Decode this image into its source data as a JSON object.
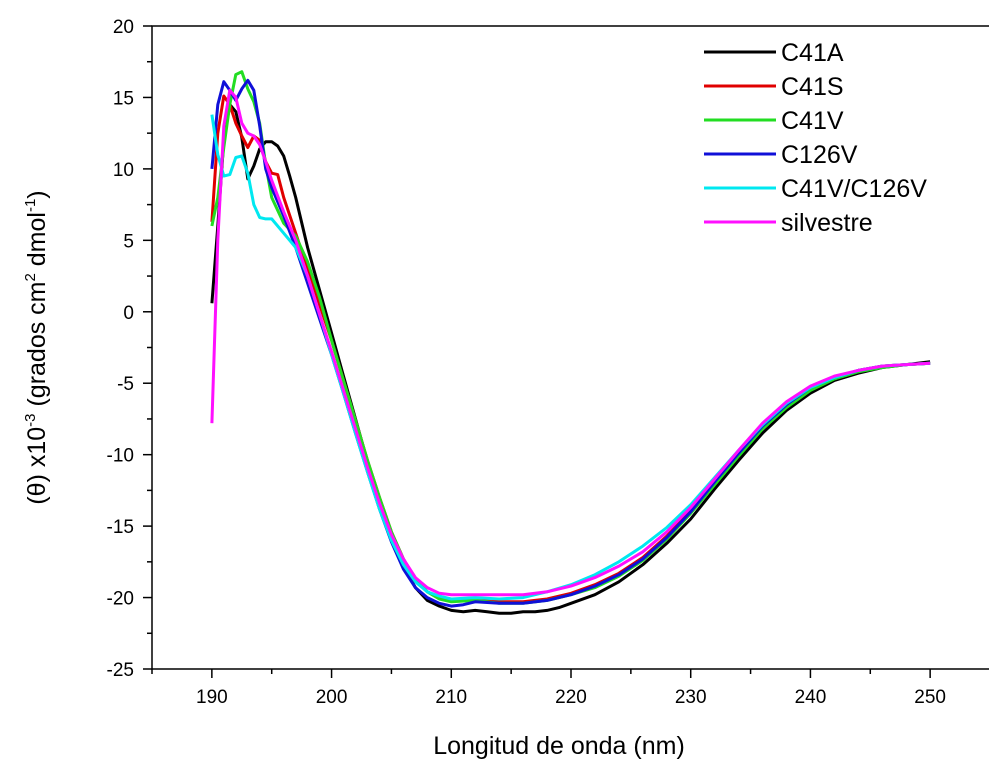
{
  "chart_data": {
    "type": "line",
    "xlabel": "Longitud de onda (nm)",
    "ylabel": {
      "prefix": "(θ) x10",
      "exp1": "-3",
      "mid": " (grados cm",
      "exp2": "2",
      "mid2": " dmol",
      "exp3": "-1",
      "suffix": ")"
    },
    "xlim": [
      185,
      255
    ],
    "ylim": [
      -25,
      20
    ],
    "xticks": [
      190,
      200,
      210,
      220,
      230,
      240,
      250
    ],
    "yticks": [
      -25,
      -20,
      -15,
      -10,
      -5,
      0,
      5,
      10,
      15,
      20
    ],
    "legend_position": "top-right",
    "grid": false,
    "series": [
      {
        "name": "C41A",
        "color": "#000000",
        "points": [
          [
            190,
            0.6
          ],
          [
            190.5,
            6
          ],
          [
            191,
            12
          ],
          [
            191.5,
            14.5
          ],
          [
            192,
            14
          ],
          [
            192.5,
            12.2
          ],
          [
            193,
            9.3
          ],
          [
            193.5,
            10.2
          ],
          [
            194,
            11.4
          ],
          [
            194.5,
            11.9
          ],
          [
            195,
            11.9
          ],
          [
            195.5,
            11.6
          ],
          [
            196,
            10.9
          ],
          [
            196.5,
            9.5
          ],
          [
            197,
            8
          ],
          [
            198,
            4.5
          ],
          [
            199,
            1.5
          ],
          [
            200,
            -1.5
          ],
          [
            201,
            -4.5
          ],
          [
            202,
            -7.5
          ],
          [
            203,
            -10.5
          ],
          [
            204,
            -13.3
          ],
          [
            205,
            -15.8
          ],
          [
            206,
            -17.8
          ],
          [
            207,
            -19.3
          ],
          [
            208,
            -20.2
          ],
          [
            209,
            -20.6
          ],
          [
            210,
            -20.9
          ],
          [
            211,
            -21
          ],
          [
            212,
            -20.9
          ],
          [
            213,
            -21
          ],
          [
            214,
            -21.1
          ],
          [
            215,
            -21.1
          ],
          [
            216,
            -21
          ],
          [
            217,
            -21
          ],
          [
            218,
            -20.9
          ],
          [
            219,
            -20.7
          ],
          [
            220,
            -20.4
          ],
          [
            222,
            -19.8
          ],
          [
            224,
            -18.9
          ],
          [
            226,
            -17.7
          ],
          [
            228,
            -16.2
          ],
          [
            230,
            -14.5
          ],
          [
            232,
            -12.4
          ],
          [
            234,
            -10.4
          ],
          [
            236,
            -8.5
          ],
          [
            238,
            -6.9
          ],
          [
            240,
            -5.7
          ],
          [
            242,
            -4.8
          ],
          [
            244,
            -4.3
          ],
          [
            246,
            -3.9
          ],
          [
            248,
            -3.7
          ],
          [
            250,
            -3.5
          ]
        ]
      },
      {
        "name": "C41S",
        "color": "#e00000",
        "points": [
          [
            190,
            6.3
          ],
          [
            190.5,
            12.5
          ],
          [
            191,
            15.1
          ],
          [
            191.5,
            14.5
          ],
          [
            192,
            13.2
          ],
          [
            192.5,
            12.3
          ],
          [
            193,
            11.5
          ],
          [
            193.5,
            12.3
          ],
          [
            194,
            12
          ],
          [
            194.5,
            10.5
          ],
          [
            195,
            9.7
          ],
          [
            195.5,
            9.6
          ],
          [
            196,
            8
          ],
          [
            197,
            5.5
          ],
          [
            198,
            3
          ],
          [
            199,
            0.5
          ],
          [
            200,
            -2
          ],
          [
            201,
            -4.8
          ],
          [
            202,
            -7.6
          ],
          [
            203,
            -10.4
          ],
          [
            204,
            -13
          ],
          [
            205,
            -15.4
          ],
          [
            206,
            -17.3
          ],
          [
            207,
            -18.7
          ],
          [
            208,
            -19.6
          ],
          [
            209,
            -20
          ],
          [
            210,
            -20.2
          ],
          [
            212,
            -20.1
          ],
          [
            214,
            -20.3
          ],
          [
            216,
            -20.3
          ],
          [
            218,
            -20.1
          ],
          [
            220,
            -19.7
          ],
          [
            222,
            -19.1
          ],
          [
            224,
            -18.3
          ],
          [
            226,
            -17.2
          ],
          [
            228,
            -15.7
          ],
          [
            230,
            -13.9
          ],
          [
            232,
            -11.9
          ],
          [
            234,
            -9.9
          ],
          [
            236,
            -8
          ],
          [
            238,
            -6.5
          ],
          [
            240,
            -5.3
          ],
          [
            242,
            -4.6
          ],
          [
            244,
            -4.1
          ],
          [
            246,
            -3.8
          ],
          [
            248,
            -3.7
          ],
          [
            250,
            -3.6
          ]
        ]
      },
      {
        "name": "C41V",
        "color": "#22dd22",
        "points": [
          [
            190,
            6
          ],
          [
            190.5,
            8
          ],
          [
            191,
            11.5
          ],
          [
            191.5,
            14.5
          ],
          [
            192,
            16.6
          ],
          [
            192.5,
            16.8
          ],
          [
            193,
            15.6
          ],
          [
            193.5,
            14.7
          ],
          [
            194,
            13.2
          ],
          [
            194.5,
            10.3
          ],
          [
            195,
            8
          ],
          [
            196,
            6.2
          ],
          [
            197,
            5.3
          ],
          [
            198,
            3.5
          ],
          [
            199,
            1
          ],
          [
            200,
            -2
          ],
          [
            201,
            -4.8
          ],
          [
            202,
            -7.6
          ],
          [
            203,
            -10.4
          ],
          [
            204,
            -13
          ],
          [
            205,
            -15.4
          ],
          [
            206,
            -17.3
          ],
          [
            207,
            -18.7
          ],
          [
            208,
            -19.6
          ],
          [
            209,
            -20.1
          ],
          [
            210,
            -20.3
          ],
          [
            212,
            -20.2
          ],
          [
            214,
            -20.4
          ],
          [
            216,
            -20.4
          ],
          [
            218,
            -20.2
          ],
          [
            220,
            -19.8
          ],
          [
            222,
            -19.3
          ],
          [
            224,
            -18.5
          ],
          [
            226,
            -17.4
          ],
          [
            228,
            -15.9
          ],
          [
            230,
            -14.1
          ],
          [
            232,
            -12.1
          ],
          [
            234,
            -10.1
          ],
          [
            236,
            -8.2
          ],
          [
            238,
            -6.7
          ],
          [
            240,
            -5.5
          ],
          [
            242,
            -4.7
          ],
          [
            244,
            -4.2
          ],
          [
            246,
            -3.9
          ],
          [
            248,
            -3.7
          ],
          [
            250,
            -3.6
          ]
        ]
      },
      {
        "name": "C126V",
        "color": "#1010d8",
        "points": [
          [
            190,
            10
          ],
          [
            190.5,
            14.5
          ],
          [
            191,
            16.1
          ],
          [
            191.5,
            15.5
          ],
          [
            192,
            14.8
          ],
          [
            192.5,
            15.6
          ],
          [
            193,
            16.2
          ],
          [
            193.5,
            15.5
          ],
          [
            194,
            13
          ],
          [
            194.5,
            10
          ],
          [
            195,
            8.7
          ],
          [
            196,
            6.7
          ],
          [
            197,
            4.5
          ],
          [
            198,
            2
          ],
          [
            199,
            -0.5
          ],
          [
            200,
            -3
          ],
          [
            201,
            -5.7
          ],
          [
            202,
            -8.5
          ],
          [
            203,
            -11.2
          ],
          [
            204,
            -13.8
          ],
          [
            205,
            -16.1
          ],
          [
            206,
            -18
          ],
          [
            207,
            -19.3
          ],
          [
            208,
            -20
          ],
          [
            209,
            -20.4
          ],
          [
            210,
            -20.6
          ],
          [
            211,
            -20.5
          ],
          [
            212,
            -20.3
          ],
          [
            214,
            -20.4
          ],
          [
            216,
            -20.4
          ],
          [
            218,
            -20.2
          ],
          [
            220,
            -19.8
          ],
          [
            222,
            -19.2
          ],
          [
            224,
            -18.4
          ],
          [
            226,
            -17.3
          ],
          [
            228,
            -15.8
          ],
          [
            230,
            -14
          ],
          [
            232,
            -11.9
          ],
          [
            234,
            -9.9
          ],
          [
            236,
            -8
          ],
          [
            238,
            -6.5
          ],
          [
            240,
            -5.3
          ],
          [
            242,
            -4.6
          ],
          [
            244,
            -4.1
          ],
          [
            246,
            -3.8
          ],
          [
            248,
            -3.7
          ],
          [
            250,
            -3.6
          ]
        ]
      },
      {
        "name": "C41V/C126V",
        "color": "#00e8f0",
        "points": [
          [
            190,
            13.8
          ],
          [
            190.5,
            11
          ],
          [
            191,
            9.5
          ],
          [
            191.5,
            9.6
          ],
          [
            192,
            10.8
          ],
          [
            192.5,
            10.9
          ],
          [
            193,
            9.7
          ],
          [
            193.5,
            7.5
          ],
          [
            194,
            6.6
          ],
          [
            194.5,
            6.5
          ],
          [
            195,
            6.5
          ],
          [
            196,
            5.5
          ],
          [
            197,
            4.5
          ],
          [
            198,
            2.5
          ],
          [
            199,
            -0.2
          ],
          [
            200,
            -3
          ],
          [
            201,
            -5.7
          ],
          [
            202,
            -8.5
          ],
          [
            203,
            -11.2
          ],
          [
            204,
            -13.8
          ],
          [
            205,
            -16
          ],
          [
            206,
            -17.7
          ],
          [
            207,
            -18.9
          ],
          [
            208,
            -19.6
          ],
          [
            209,
            -19.9
          ],
          [
            210,
            -20.1
          ],
          [
            212,
            -20
          ],
          [
            214,
            -20.1
          ],
          [
            216,
            -20
          ],
          [
            218,
            -19.6
          ],
          [
            220,
            -19.1
          ],
          [
            222,
            -18.4
          ],
          [
            224,
            -17.5
          ],
          [
            226,
            -16.4
          ],
          [
            228,
            -15.1
          ],
          [
            230,
            -13.5
          ],
          [
            232,
            -11.6
          ],
          [
            234,
            -9.7
          ],
          [
            236,
            -7.9
          ],
          [
            238,
            -6.4
          ],
          [
            240,
            -5.3
          ],
          [
            242,
            -4.6
          ],
          [
            244,
            -4.1
          ],
          [
            246,
            -3.8
          ],
          [
            248,
            -3.7
          ],
          [
            250,
            -3.6
          ]
        ]
      },
      {
        "name": "silvestre",
        "color": "#ff10ff",
        "points": [
          [
            190,
            -7.8
          ],
          [
            190.5,
            5
          ],
          [
            191,
            13
          ],
          [
            191.5,
            15.5
          ],
          [
            192,
            15
          ],
          [
            192.5,
            13.2
          ],
          [
            193,
            12.5
          ],
          [
            193.5,
            12.3
          ],
          [
            194,
            11.7
          ],
          [
            194.5,
            10.5
          ],
          [
            195,
            9.2
          ],
          [
            196,
            7
          ],
          [
            197,
            5
          ],
          [
            198,
            2.5
          ],
          [
            199,
            -0.2
          ],
          [
            200,
            -2.8
          ],
          [
            201,
            -5.5
          ],
          [
            202,
            -8.2
          ],
          [
            203,
            -10.9
          ],
          [
            204,
            -13.4
          ],
          [
            205,
            -15.6
          ],
          [
            206,
            -17.3
          ],
          [
            207,
            -18.6
          ],
          [
            208,
            -19.3
          ],
          [
            209,
            -19.7
          ],
          [
            210,
            -19.8
          ],
          [
            212,
            -19.8
          ],
          [
            214,
            -19.8
          ],
          [
            216,
            -19.8
          ],
          [
            218,
            -19.6
          ],
          [
            220,
            -19.2
          ],
          [
            222,
            -18.6
          ],
          [
            224,
            -17.8
          ],
          [
            226,
            -16.8
          ],
          [
            228,
            -15.4
          ],
          [
            230,
            -13.7
          ],
          [
            232,
            -11.7
          ],
          [
            234,
            -9.7
          ],
          [
            236,
            -7.8
          ],
          [
            238,
            -6.3
          ],
          [
            240,
            -5.2
          ],
          [
            242,
            -4.5
          ],
          [
            244,
            -4.1
          ],
          [
            246,
            -3.8
          ],
          [
            248,
            -3.7
          ],
          [
            250,
            -3.6
          ]
        ]
      }
    ]
  }
}
